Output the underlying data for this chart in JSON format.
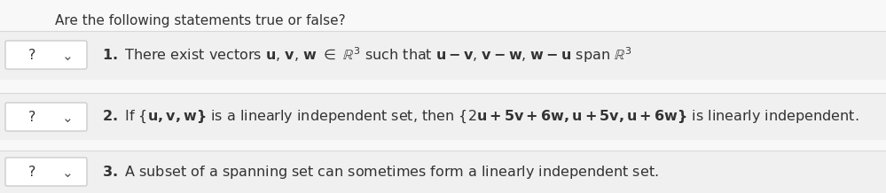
{
  "title": "Are the following statements true or false?",
  "bg_color": "#f8f8f8",
  "row_bg_color": "#f0f0f0",
  "white": "#ffffff",
  "box_edge_color": "#c8c8c8",
  "text_color": "#333333",
  "question_mark": "?",
  "font_size": 11.5,
  "title_font_size": 11.0,
  "statement3": "3. A subset of a spanning set can sometimes form a linearly independent set.",
  "row1_label": "1.",
  "row2_label": "2.",
  "row3_label": "3."
}
